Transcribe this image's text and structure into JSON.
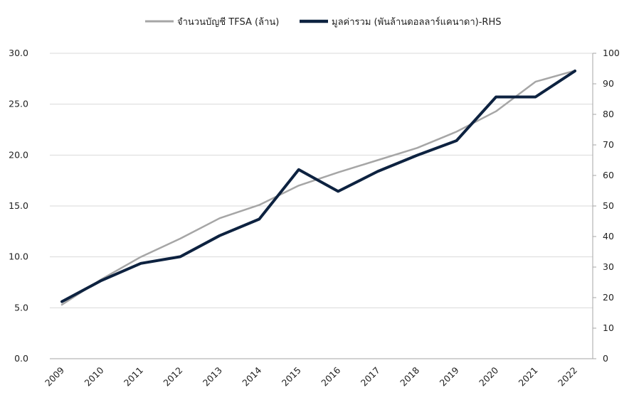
{
  "chart_data": {
    "type": "line",
    "categories": [
      "2009",
      "2010",
      "2011",
      "2012",
      "2013",
      "2014",
      "2015",
      "2016",
      "2017",
      "2018",
      "2019",
      "2020",
      "2021",
      "2022"
    ],
    "series": [
      {
        "name": "จำนวนบัญชี TFSA (ล้าน)",
        "axis": "left",
        "color": "#a6a6a6",
        "values": [
          5.3,
          7.8,
          10.0,
          11.8,
          13.8,
          15.1,
          17.0,
          18.3,
          19.5,
          20.7,
          22.3,
          24.3,
          27.2,
          28.3
        ]
      },
      {
        "name": "มูลค่ารวม (พันล้านดอลลาร์แคนาดา)-RHS",
        "axis": "right",
        "color": "#0d2240",
        "values": [
          18.7,
          25.6,
          31.2,
          33.4,
          40.3,
          45.7,
          61.9,
          54.8,
          61.3,
          66.6,
          71.4,
          85.7,
          85.7,
          94.2
        ]
      }
    ],
    "left_axis": {
      "min": 0,
      "max": 30,
      "step": 5,
      "tick_labels": [
        "0.0",
        "5.0",
        "10.0",
        "15.0",
        "20.0",
        "25.0",
        "30.0"
      ]
    },
    "right_axis": {
      "min": 0,
      "max": 100,
      "step": 10,
      "tick_labels": [
        "0",
        "10",
        "20",
        "30",
        "40",
        "50",
        "60",
        "70",
        "80",
        "90",
        "100"
      ]
    },
    "grid": true,
    "legend_position": "top-center",
    "gridline_color": "#d9d9d9",
    "axis_line_color": "#a6a6a6"
  }
}
